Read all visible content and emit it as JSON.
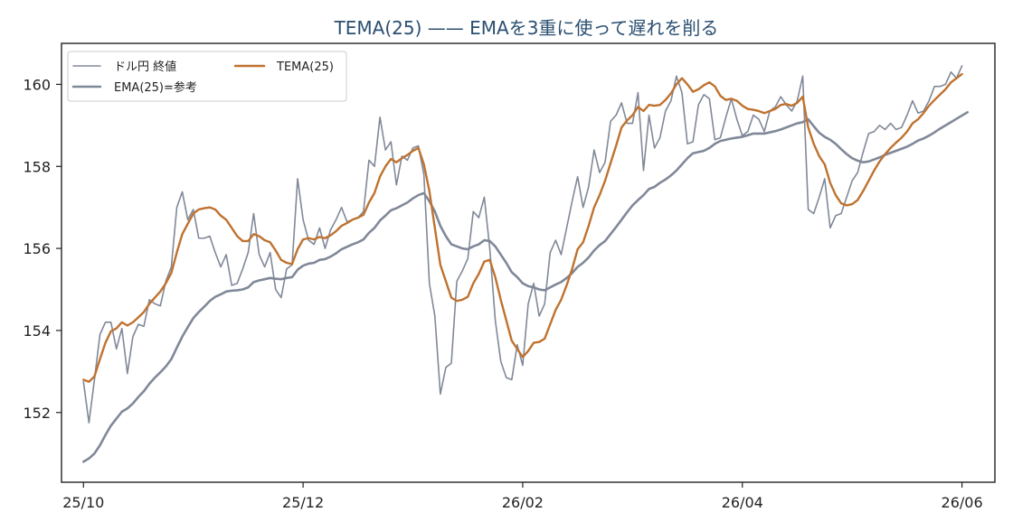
{
  "chart_data": {
    "type": "line",
    "title": "TEMA(25) —— EMAを3重に使って遅れを削る",
    "xlabel": "",
    "ylabel": "",
    "x_tick_labels": [
      "25/10",
      "25/12",
      "26/02",
      "26/04",
      "26/06"
    ],
    "y_ticks": [
      152,
      154,
      156,
      158,
      160
    ],
    "ylim": [
      150.3,
      161.0
    ],
    "x_range": [
      -4,
      166
    ],
    "grid": false,
    "legend_position": "top-left",
    "colors": {
      "title": "#2b4f72",
      "price": "#808898",
      "ema": "#808898",
      "tema": "#bf7230"
    },
    "series": [
      {
        "name": "ドル円 終値",
        "values": [
          152.75,
          151.75,
          152.8,
          153.9,
          154.2,
          154.2,
          153.55,
          154.05,
          152.95,
          153.85,
          154.15,
          154.1,
          154.75,
          154.65,
          154.6,
          155.2,
          155.55,
          157.0,
          157.38,
          156.7,
          156.95,
          156.25,
          156.25,
          156.3,
          155.9,
          155.55,
          155.85,
          155.1,
          155.15,
          155.5,
          155.9,
          156.85,
          155.85,
          155.55,
          155.9,
          155.0,
          154.8,
          155.5,
          155.6,
          157.7,
          156.7,
          156.2,
          156.1,
          156.5,
          156.0,
          156.45,
          156.7,
          157.0,
          156.65,
          156.7,
          156.75,
          156.9,
          158.15,
          158.0,
          159.2,
          158.4,
          158.6,
          157.55,
          158.25,
          158.15,
          158.45,
          158.5,
          157.8,
          155.15,
          154.35,
          152.45,
          153.1,
          153.2,
          155.2,
          155.45,
          155.75,
          156.9,
          156.75,
          157.25,
          156.0,
          154.25,
          153.25,
          152.85,
          152.8,
          153.65,
          153.15,
          154.65,
          155.15,
          154.35,
          154.65,
          155.9,
          156.2,
          155.85,
          156.5,
          157.15,
          157.75,
          157.0,
          157.5,
          158.4,
          157.85,
          158.1,
          159.1,
          159.25,
          159.55,
          159.05,
          159.05,
          159.8,
          157.9,
          159.25,
          158.45,
          158.7,
          159.35,
          159.6,
          160.2,
          159.8,
          158.55,
          158.6,
          159.5,
          159.75,
          159.65,
          158.65,
          158.7,
          159.2,
          159.65,
          159.15,
          158.75,
          158.85,
          159.25,
          159.15,
          158.85,
          159.35,
          159.45,
          159.7,
          159.5,
          159.35,
          159.6,
          160.2,
          156.95,
          156.85,
          157.25,
          157.7,
          156.5,
          156.8,
          156.85,
          157.25,
          157.65,
          157.85,
          158.35,
          158.8,
          158.85,
          159.0,
          158.9,
          159.05,
          158.9,
          158.95,
          159.25,
          159.6,
          159.3,
          159.35,
          159.6,
          159.95,
          159.95,
          160.0,
          160.3,
          160.15,
          160.45
        ]
      },
      {
        "name": "EMA(25)=参考",
        "values": [
          150.8,
          150.88,
          151.0,
          151.2,
          151.45,
          151.68,
          151.85,
          152.02,
          152.1,
          152.22,
          152.38,
          152.52,
          152.7,
          152.85,
          152.98,
          153.12,
          153.3,
          153.58,
          153.85,
          154.08,
          154.3,
          154.45,
          154.58,
          154.72,
          154.82,
          154.88,
          154.95,
          154.97,
          154.98,
          155.0,
          155.05,
          155.18,
          155.22,
          155.25,
          155.28,
          155.26,
          155.25,
          155.28,
          155.3,
          155.48,
          155.58,
          155.63,
          155.65,
          155.72,
          155.74,
          155.8,
          155.88,
          155.98,
          156.04,
          156.1,
          156.15,
          156.22,
          156.38,
          156.5,
          156.68,
          156.8,
          156.93,
          156.98,
          157.05,
          157.12,
          157.22,
          157.3,
          157.35,
          157.15,
          156.9,
          156.55,
          156.3,
          156.1,
          156.05,
          156.0,
          155.98,
          156.05,
          156.1,
          156.2,
          156.18,
          156.05,
          155.85,
          155.65,
          155.42,
          155.3,
          155.15,
          155.08,
          155.05,
          155.0,
          154.98,
          155.05,
          155.12,
          155.18,
          155.28,
          155.4,
          155.55,
          155.65,
          155.78,
          155.95,
          156.08,
          156.18,
          156.35,
          156.52,
          156.7,
          156.88,
          157.05,
          157.18,
          157.3,
          157.45,
          157.5,
          157.6,
          157.68,
          157.78,
          157.9,
          158.05,
          158.2,
          158.32,
          158.35,
          158.38,
          158.45,
          158.55,
          158.62,
          158.65,
          158.68,
          158.7,
          158.72,
          158.76,
          158.8,
          158.8,
          158.8,
          158.83,
          158.86,
          158.9,
          158.95,
          159.0,
          159.05,
          159.08,
          159.15,
          158.98,
          158.82,
          158.72,
          158.65,
          158.55,
          158.42,
          158.3,
          158.2,
          158.14,
          158.1,
          158.12,
          158.17,
          158.22,
          158.28,
          158.33,
          158.38,
          158.43,
          158.48,
          158.55,
          158.63,
          158.68,
          158.75,
          158.83,
          158.92,
          159.0,
          159.08,
          159.16,
          159.24,
          159.32
        ]
      },
      {
        "name": "TEMA(25)",
        "values": [
          152.8,
          152.75,
          152.88,
          153.3,
          153.7,
          153.98,
          154.05,
          154.2,
          154.12,
          154.2,
          154.32,
          154.45,
          154.65,
          154.8,
          154.95,
          155.15,
          155.4,
          155.9,
          156.35,
          156.6,
          156.85,
          156.95,
          156.98,
          157.0,
          156.95,
          156.8,
          156.7,
          156.5,
          156.3,
          156.18,
          156.18,
          156.35,
          156.3,
          156.2,
          156.15,
          155.95,
          155.72,
          155.65,
          155.62,
          155.98,
          156.22,
          156.25,
          156.22,
          156.28,
          156.25,
          156.32,
          156.42,
          156.55,
          156.62,
          156.7,
          156.75,
          156.82,
          157.12,
          157.35,
          157.75,
          158.0,
          158.18,
          158.1,
          158.2,
          158.28,
          158.38,
          158.45,
          158.05,
          157.4,
          156.5,
          155.6,
          155.2,
          154.8,
          154.72,
          154.75,
          154.82,
          155.15,
          155.38,
          155.68,
          155.72,
          155.3,
          154.75,
          154.25,
          153.75,
          153.55,
          153.35,
          153.5,
          153.7,
          153.72,
          153.8,
          154.15,
          154.5,
          154.75,
          155.1,
          155.5,
          155.98,
          156.15,
          156.55,
          157.0,
          157.3,
          157.65,
          158.08,
          158.5,
          158.95,
          159.12,
          159.25,
          159.45,
          159.35,
          159.5,
          159.48,
          159.5,
          159.62,
          159.78,
          160.0,
          160.15,
          160.0,
          159.82,
          159.88,
          159.98,
          160.05,
          159.95,
          159.72,
          159.62,
          159.65,
          159.6,
          159.48,
          159.4,
          159.38,
          159.35,
          159.3,
          159.35,
          159.4,
          159.5,
          159.52,
          159.48,
          159.55,
          159.7,
          158.95,
          158.55,
          158.25,
          158.05,
          157.6,
          157.3,
          157.1,
          157.05,
          157.08,
          157.18,
          157.4,
          157.65,
          157.9,
          158.12,
          158.3,
          158.45,
          158.58,
          158.7,
          158.85,
          159.05,
          159.15,
          159.3,
          159.48,
          159.62,
          159.75,
          159.88,
          160.05,
          160.15,
          160.25
        ]
      }
    ]
  }
}
